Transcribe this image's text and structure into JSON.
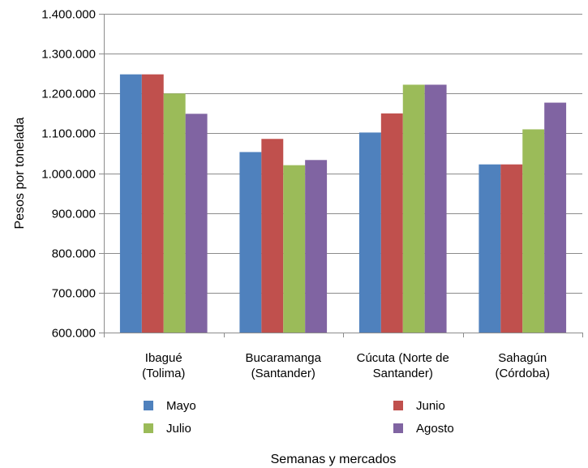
{
  "chart_data": {
    "type": "bar",
    "title": "",
    "xlabel": "Semanas y mercados",
    "ylabel": "Pesos por tonelada",
    "ylim": [
      600000,
      1400000
    ],
    "ytick_step": 100000,
    "ytick_labels": [
      "600.000",
      "700.000",
      "800.000",
      "900.000",
      "1.000.000",
      "1.100.000",
      "1.200.000",
      "1.300.000",
      "1.400.000"
    ],
    "grid": true,
    "legend_position": "bottom",
    "categories": [
      [
        "Ibagué",
        "(Tolima)"
      ],
      [
        "Bucaramanga",
        "(Santander)"
      ],
      [
        "Cúcuta (Norte de",
        "Santander)"
      ],
      [
        "Sahagún",
        "(Córdoba)"
      ]
    ],
    "series": [
      {
        "name": "Mayo",
        "color": "#4F81BD",
        "values": [
          1248000,
          1053000,
          1102000,
          1022000
        ]
      },
      {
        "name": "Junio",
        "color": "#C0504D",
        "values": [
          1248000,
          1086000,
          1150000,
          1022000
        ]
      },
      {
        "name": "Julio",
        "color": "#9BBB59",
        "values": [
          1200000,
          1020000,
          1222000,
          1110000
        ]
      },
      {
        "name": "Agosto",
        "color": "#8064A2",
        "values": [
          1149000,
          1033000,
          1222000,
          1177000
        ]
      }
    ]
  }
}
